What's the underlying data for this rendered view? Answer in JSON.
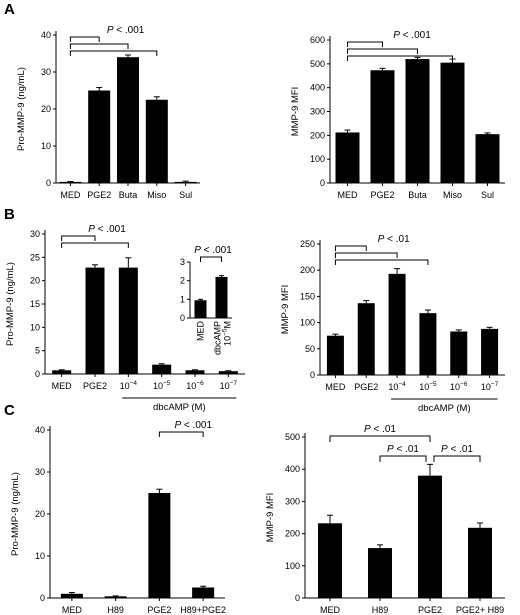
{
  "panels": [
    {
      "id": "A",
      "label": "A"
    },
    {
      "id": "B",
      "label": "B"
    },
    {
      "id": "C",
      "label": "C"
    }
  ],
  "chart_data": [
    {
      "id": "A-left",
      "panel": "A",
      "type": "bar",
      "ylabel": "Pro-MMP-9 (ng/mL)",
      "ylim": [
        0,
        40
      ],
      "yticks": [
        0,
        10,
        20,
        30,
        40
      ],
      "categories": [
        "MED",
        "PGE2",
        "Buta",
        "Miso",
        "Sul"
      ],
      "values": [
        0.3,
        25,
        34,
        22.5,
        0.3
      ],
      "errors": [
        0.1,
        0.8,
        0.6,
        0.8,
        0.2
      ],
      "bar_color": "#000000",
      "significance": {
        "label": "P < .001",
        "from": "MED",
        "to": [
          "PGE2",
          "Buta",
          "Miso"
        ]
      }
    },
    {
      "id": "A-right",
      "panel": "A",
      "type": "bar",
      "ylabel": "MMP-9 MFI",
      "ylim": [
        0,
        600
      ],
      "yticks": [
        0,
        100,
        200,
        300,
        400,
        500,
        600
      ],
      "categories": [
        "MED",
        "PGE2",
        "Buta",
        "Miso",
        "Sul"
      ],
      "values": [
        212,
        473,
        520,
        505,
        205
      ],
      "errors": [
        10,
        8,
        7,
        15,
        5
      ],
      "bar_color": "#000000",
      "significance": {
        "label": "P < .001",
        "from": "MED",
        "to": [
          "PGE2",
          "Buta",
          "Miso"
        ]
      }
    },
    {
      "id": "B-left",
      "panel": "B",
      "type": "bar",
      "ylabel": "Pro-MMP-9 (ng/mL)",
      "ylim": [
        0,
        30
      ],
      "yticks": [
        0,
        5,
        10,
        15,
        20,
        25,
        30
      ],
      "categories": [
        "MED",
        "PGE2",
        "10⁻⁴",
        "10⁻⁵",
        "10⁻⁶",
        "10⁻⁷"
      ],
      "values": [
        0.8,
        22.8,
        22.8,
        2,
        0.8,
        0.6
      ],
      "errors": [
        0.1,
        0.6,
        2.1,
        0.2,
        0.1,
        0.1
      ],
      "bar_color": "#000000",
      "group_label": "dbcAMP (M)",
      "significance": {
        "label": "P < .001",
        "from": "MED",
        "to": [
          "PGE2",
          "10⁻⁴"
        ]
      },
      "inset": {
        "type": "bar",
        "ylim": [
          0,
          3
        ],
        "yticks": [
          0,
          1,
          2,
          3
        ],
        "categories": [
          "MED",
          "dbcAMP 10⁻⁵M"
        ],
        "values": [
          0.95,
          2.2
        ],
        "errors": [
          0.05,
          0.07
        ],
        "significance": {
          "label": "P < .001",
          "from": "MED",
          "to": [
            "dbcAMP 10⁻⁵M"
          ]
        }
      }
    },
    {
      "id": "B-right",
      "panel": "B",
      "type": "bar",
      "ylabel": "MMP-9 MFI",
      "ylim": [
        0,
        250
      ],
      "yticks": [
        0,
        50,
        100,
        150,
        200,
        250
      ],
      "categories": [
        "MED",
        "PGE2",
        "10⁻⁴",
        "10⁻⁵",
        "10⁻⁶",
        "10⁻⁷"
      ],
      "values": [
        75,
        137,
        193,
        118,
        83,
        88
      ],
      "errors": [
        3,
        5,
        10,
        6,
        3,
        3
      ],
      "bar_color": "#000000",
      "group_label": "dbcAMP (M)",
      "significance": {
        "label": "P < .01",
        "from": "MED",
        "to": [
          "PGE2",
          "10⁻⁴",
          "10⁻⁵"
        ]
      }
    },
    {
      "id": "C-left",
      "panel": "C",
      "type": "bar",
      "ylabel": "Pro-MMP-9 (ng/mL)",
      "ylim": [
        0,
        40
      ],
      "yticks": [
        0,
        10,
        20,
        30,
        40
      ],
      "categories": [
        "MED",
        "H89",
        "PGE2",
        "H89+PGE2"
      ],
      "values": [
        1,
        0.4,
        25,
        2.5
      ],
      "errors": [
        0.3,
        0.1,
        0.9,
        0.3
      ],
      "bar_color": "#000000",
      "significance": {
        "label": "P < .001",
        "from": "PGE2",
        "to": [
          "H89+PGE2"
        ]
      }
    },
    {
      "id": "C-right",
      "panel": "C",
      "type": "bar",
      "ylabel": "MMP-9 MFI",
      "ylim": [
        0,
        500
      ],
      "yticks": [
        0,
        100,
        200,
        300,
        400,
        500
      ],
      "categories": [
        "MED",
        "H89",
        "PGE2",
        "PGE2+ H89"
      ],
      "values": [
        232,
        155,
        380,
        218
      ],
      "errors": [
        25,
        10,
        35,
        15
      ],
      "bar_color": "#000000",
      "brackets": [
        {
          "label": "P < .01",
          "a": "MED",
          "b": "PGE2",
          "level": 2
        },
        {
          "label": "P < .01",
          "a": "H89",
          "b": "PGE2",
          "level": 1
        },
        {
          "label": "P < .01",
          "a": "PGE2",
          "b": "PGE2+ H89",
          "level": 1
        }
      ]
    }
  ]
}
